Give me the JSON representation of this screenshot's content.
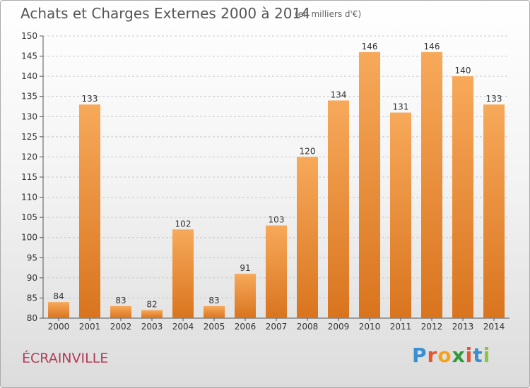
{
  "header": {
    "title": "Achats et Charges Externes 2000 à 2014",
    "subtitle": "(en milliers d'€)"
  },
  "footer": {
    "commune": "ÉCRAINVILLE",
    "logo_text": "Proxiti"
  },
  "colors": {
    "bar_light": "#f7a95a",
    "bar_dark": "#d9741e",
    "grid": "#c9c9c9",
    "title": "#555555",
    "commune": "#b23a55"
  },
  "chart_data": {
    "type": "bar",
    "title": "Achats et Charges Externes 2000 à 2014",
    "xlabel": "",
    "ylabel": "",
    "ylim": [
      80,
      150
    ],
    "yticks": [
      80,
      85,
      90,
      95,
      100,
      105,
      110,
      115,
      120,
      125,
      130,
      135,
      140,
      145,
      150
    ],
    "grid": true,
    "categories": [
      "2000",
      "2001",
      "2002",
      "2003",
      "2004",
      "2005",
      "2006",
      "2007",
      "2008",
      "2009",
      "2010",
      "2011",
      "2012",
      "2013",
      "2014"
    ],
    "values": [
      84,
      133,
      83,
      82,
      102,
      83,
      91,
      103,
      120,
      134,
      146,
      131,
      146,
      140,
      133
    ]
  }
}
